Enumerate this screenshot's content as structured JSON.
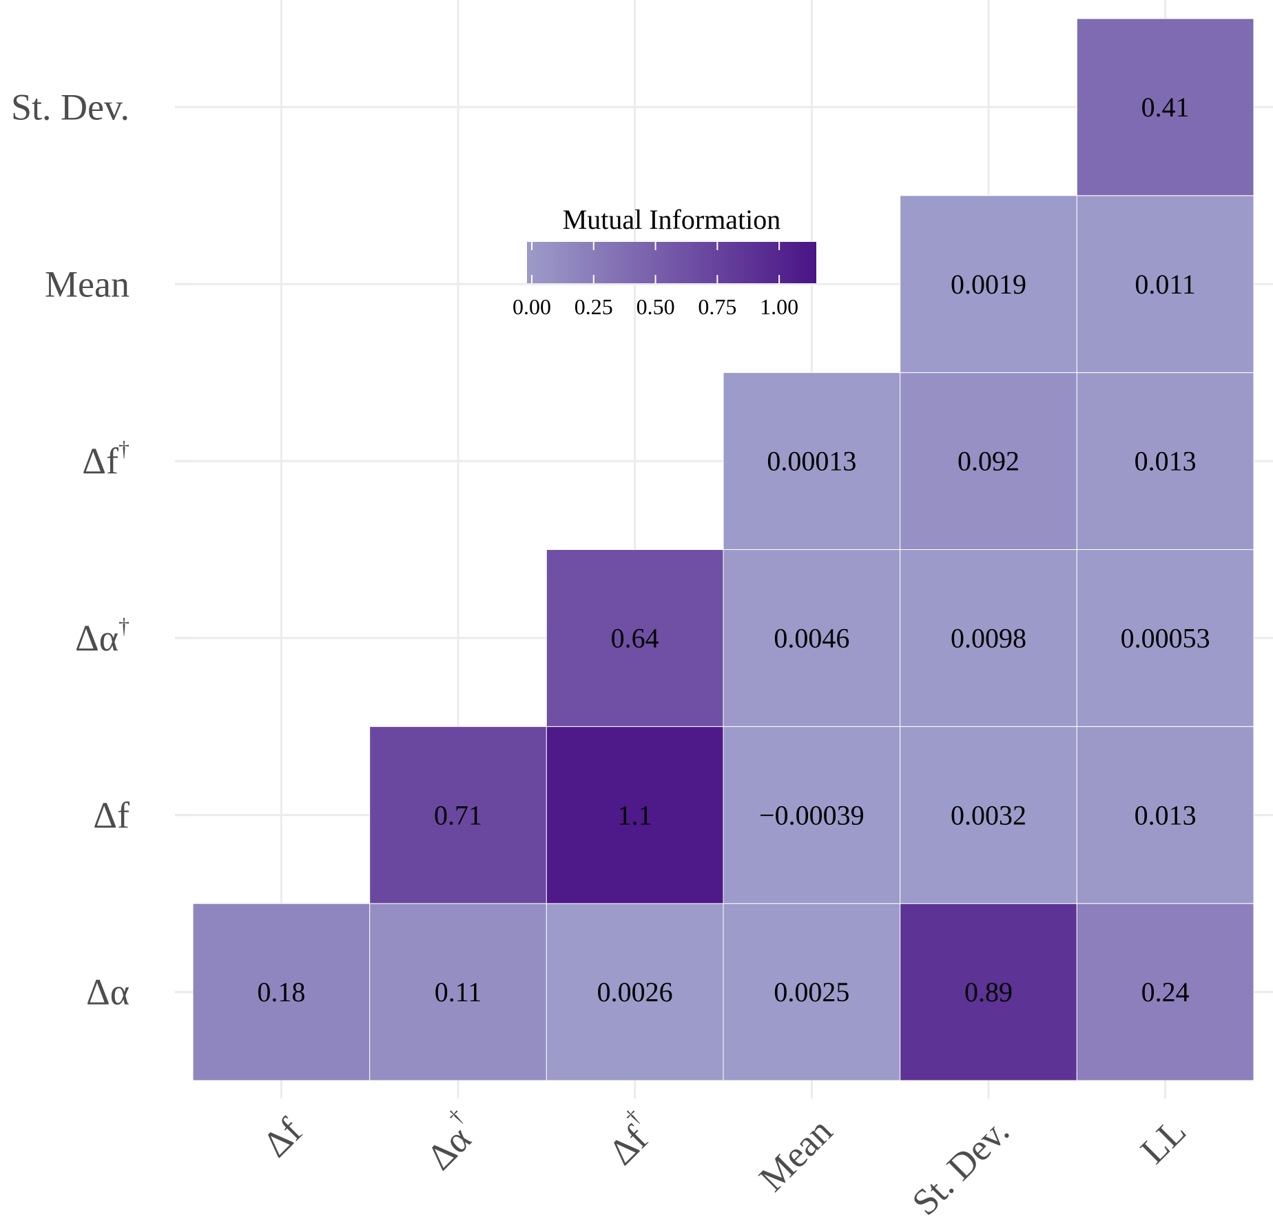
{
  "chart_data": {
    "type": "heatmap",
    "x_categories": [
      "Δf",
      "Δα†",
      "Δf†",
      "Mean",
      "St. Dev.",
      "LL"
    ],
    "y_categories": [
      "Δα",
      "Δf",
      "Δα†",
      "Δf†",
      "Mean",
      "St. Dev."
    ],
    "cells": [
      {
        "x": "Δf",
        "y": "Δα",
        "value": 0.18,
        "label": "0.18"
      },
      {
        "x": "Δα†",
        "y": "Δα",
        "value": 0.11,
        "label": "0.11"
      },
      {
        "x": "Δf†",
        "y": "Δα",
        "value": 0.0026,
        "label": "0.0026"
      },
      {
        "x": "Mean",
        "y": "Δα",
        "value": 0.0025,
        "label": "0.0025"
      },
      {
        "x": "St. Dev.",
        "y": "Δα",
        "value": 0.89,
        "label": "0.89"
      },
      {
        "x": "LL",
        "y": "Δα",
        "value": 0.24,
        "label": "0.24"
      },
      {
        "x": "Δα†",
        "y": "Δf",
        "value": 0.71,
        "label": "0.71"
      },
      {
        "x": "Δf†",
        "y": "Δf",
        "value": 1.1,
        "label": "1.1"
      },
      {
        "x": "Mean",
        "y": "Δf",
        "value": -0.00039,
        "label": "−0.00039"
      },
      {
        "x": "St. Dev.",
        "y": "Δf",
        "value": 0.0032,
        "label": "0.0032"
      },
      {
        "x": "LL",
        "y": "Δf",
        "value": 0.013,
        "label": "0.013"
      },
      {
        "x": "Δf†",
        "y": "Δα†",
        "value": 0.64,
        "label": "0.64"
      },
      {
        "x": "Mean",
        "y": "Δα†",
        "value": 0.0046,
        "label": "0.0046"
      },
      {
        "x": "St. Dev.",
        "y": "Δα†",
        "value": 0.0098,
        "label": "0.0098"
      },
      {
        "x": "LL",
        "y": "Δα†",
        "value": 0.00053,
        "label": "0.00053"
      },
      {
        "x": "Mean",
        "y": "Δf†",
        "value": 0.00013,
        "label": "0.00013"
      },
      {
        "x": "St. Dev.",
        "y": "Δf†",
        "value": 0.092,
        "label": "0.092"
      },
      {
        "x": "LL",
        "y": "Δf†",
        "value": 0.013,
        "label": "0.013"
      },
      {
        "x": "St. Dev.",
        "y": "Mean",
        "value": 0.0019,
        "label": "0.0019"
      },
      {
        "x": "LL",
        "y": "Mean",
        "value": 0.011,
        "label": "0.011"
      },
      {
        "x": "LL",
        "y": "St. Dev.",
        "value": 0.41,
        "label": "0.41"
      }
    ],
    "color_scale": {
      "low": "#9d9bc9",
      "high": "#4a1486",
      "domain": [
        0,
        1.15
      ]
    },
    "legend": {
      "title": "Mutual Information",
      "ticks": [
        0,
        0.25,
        0.5,
        0.75,
        1.0
      ],
      "tick_labels": [
        "0.00",
        "0.25",
        "0.50",
        "0.75",
        "1.00"
      ],
      "placement": "top-center, inside plot"
    },
    "title": "",
    "xlabel": "",
    "ylabel": "",
    "grid": true
  }
}
